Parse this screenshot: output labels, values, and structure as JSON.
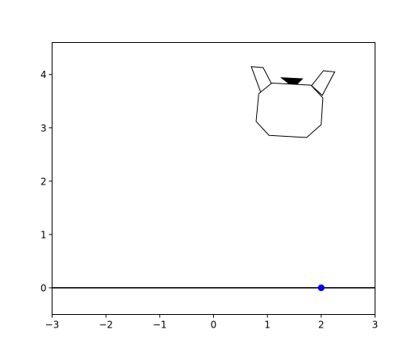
{
  "chart_data": {
    "type": "scatter",
    "title": "",
    "xlabel": "",
    "ylabel": "",
    "xlim": [
      -3,
      3
    ],
    "ylim": [
      -0.5,
      4.6
    ],
    "x_ticks": [
      "−3",
      "−2",
      "−1",
      "0",
      "1",
      "2",
      "3"
    ],
    "x_tick_values": [
      -3,
      -2,
      -1,
      0,
      1,
      2,
      3
    ],
    "y_ticks": [
      "0",
      "1",
      "2",
      "3",
      "4"
    ],
    "y_tick_values": [
      0,
      1,
      2,
      3,
      4
    ],
    "grid": false,
    "ground_line": {
      "y": 0,
      "color": "#000000"
    },
    "target_point": {
      "x": 2.0,
      "y": 0.0,
      "color": "#0000ff"
    },
    "lander_body": [
      [
        0.84,
        3.64
      ],
      [
        1.08,
        3.84
      ],
      [
        1.81,
        3.8
      ],
      [
        2.03,
        3.56
      ],
      [
        2.0,
        3.06
      ],
      [
        1.73,
        2.82
      ],
      [
        1.03,
        2.86
      ],
      [
        0.79,
        3.12
      ]
    ],
    "left_leg": [
      [
        0.7,
        4.15
      ],
      [
        0.92,
        4.13
      ],
      [
        1.08,
        3.82
      ],
      [
        0.88,
        3.66
      ]
    ],
    "right_leg": [
      [
        1.82,
        3.79
      ],
      [
        2.02,
        3.61
      ],
      [
        2.25,
        4.05
      ],
      [
        2.04,
        4.07
      ]
    ],
    "flame": [
      [
        1.26,
        3.94
      ],
      [
        1.65,
        3.92
      ],
      [
        1.55,
        3.82
      ],
      [
        1.4,
        3.83
      ]
    ]
  }
}
